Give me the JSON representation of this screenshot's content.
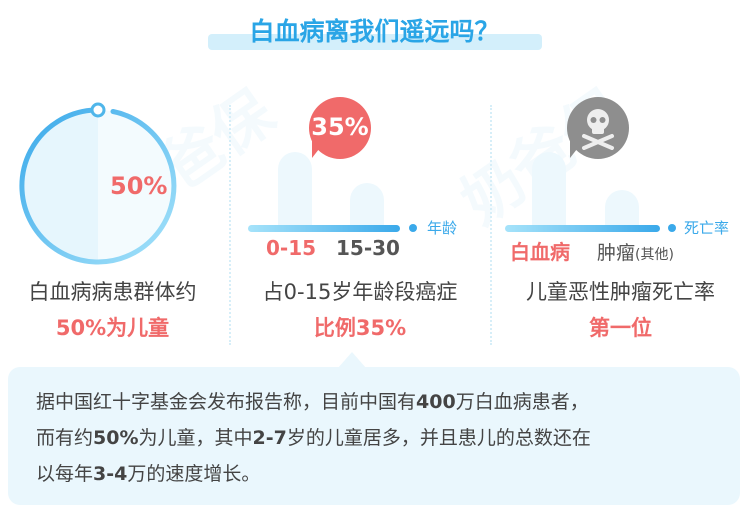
{
  "title": "白血病离我们遥远吗？",
  "watermark": "奶爸保",
  "colors": {
    "accent": "#2aa5e6",
    "highlight": "#f06a6a",
    "panel": "#eaf7fd",
    "skull": "#8e8e8e"
  },
  "panel1": {
    "percent": "50%",
    "line1": "白血病病患群体约",
    "line2": "50%为儿童",
    "share": 0.5
  },
  "panel2": {
    "bubble": "35%",
    "axis_label": "年龄",
    "categories": [
      "0-15",
      "15-30"
    ],
    "line1": "占0-15岁年龄段癌症",
    "line2": "比例35%"
  },
  "panel3": {
    "icon": "skull-crossbones-icon",
    "axis_label": "死亡率",
    "category1": "白血病",
    "category2": "肿瘤",
    "category2_note": "(其他)",
    "line1": "儿童恶性肿瘤死亡率",
    "line2": "第一位"
  },
  "info": {
    "p1": "据中国红十字基金会发布报告称，目前中国有",
    "n1": "400",
    "p2": "万白血病患者，",
    "p3": "而有约",
    "n2": "50%",
    "p4": "为儿童，其中",
    "n3": "2-7",
    "p5": "岁的儿童居多，并且患儿的总数还在",
    "p6": "以每年",
    "n4": "3-4",
    "p7": "万的速度增长。"
  }
}
